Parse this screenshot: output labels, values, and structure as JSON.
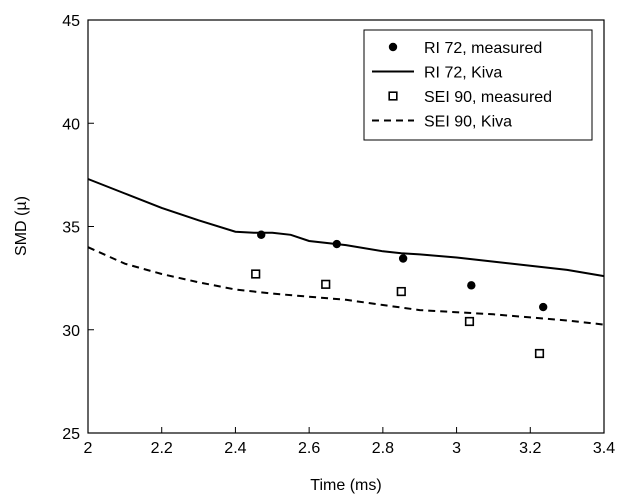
{
  "chart_data": {
    "type": "line",
    "title": "",
    "xlabel": "Time (ms)",
    "ylabel": "SMD (µ)",
    "xlim": [
      2,
      3.4
    ],
    "ylim": [
      25,
      45
    ],
    "xticks": [
      2,
      2.2,
      2.4,
      2.6,
      2.8,
      3,
      3.2,
      3.4
    ],
    "xtick_labels": [
      "2",
      "2.2",
      "2.4",
      "2.6",
      "2.8",
      "3",
      "3.2",
      "3.4"
    ],
    "yticks": [
      25,
      30,
      35,
      40,
      45
    ],
    "ytick_labels": [
      "25",
      "30",
      "35",
      "40",
      "45"
    ],
    "grid": false,
    "legend_position": "top-right",
    "series": [
      {
        "name": "RI 72, measured",
        "kind": "scatter",
        "marker": "filled-circle",
        "x": [
          2.47,
          2.675,
          2.855,
          3.04,
          3.235
        ],
        "y": [
          34.6,
          34.15,
          33.45,
          32.15,
          31.1
        ]
      },
      {
        "name": "RI 72, Kiva",
        "kind": "line",
        "dash": "solid",
        "x": [
          2.0,
          2.1,
          2.2,
          2.3,
          2.4,
          2.45,
          2.5,
          2.55,
          2.6,
          2.7,
          2.8,
          2.85,
          2.9,
          3.0,
          3.1,
          3.2,
          3.3,
          3.4
        ],
        "y": [
          37.3,
          36.6,
          35.9,
          35.3,
          34.75,
          34.7,
          34.7,
          34.6,
          34.3,
          34.1,
          33.8,
          33.7,
          33.65,
          33.5,
          33.3,
          33.1,
          32.9,
          32.6
        ]
      },
      {
        "name": "SEI 90, measured",
        "kind": "scatter",
        "marker": "open-square",
        "x": [
          2.455,
          2.645,
          2.85,
          3.035,
          3.225
        ],
        "y": [
          32.7,
          32.2,
          31.85,
          30.4,
          28.85
        ]
      },
      {
        "name": "SEI 90, Kiva",
        "kind": "line",
        "dash": "dashed",
        "x": [
          2.0,
          2.1,
          2.2,
          2.3,
          2.4,
          2.5,
          2.6,
          2.7,
          2.8,
          2.9,
          3.0,
          3.1,
          3.2,
          3.3,
          3.4
        ],
        "y": [
          34.0,
          33.2,
          32.7,
          32.3,
          31.95,
          31.75,
          31.6,
          31.45,
          31.2,
          30.95,
          30.85,
          30.75,
          30.6,
          30.45,
          30.25
        ]
      }
    ]
  }
}
